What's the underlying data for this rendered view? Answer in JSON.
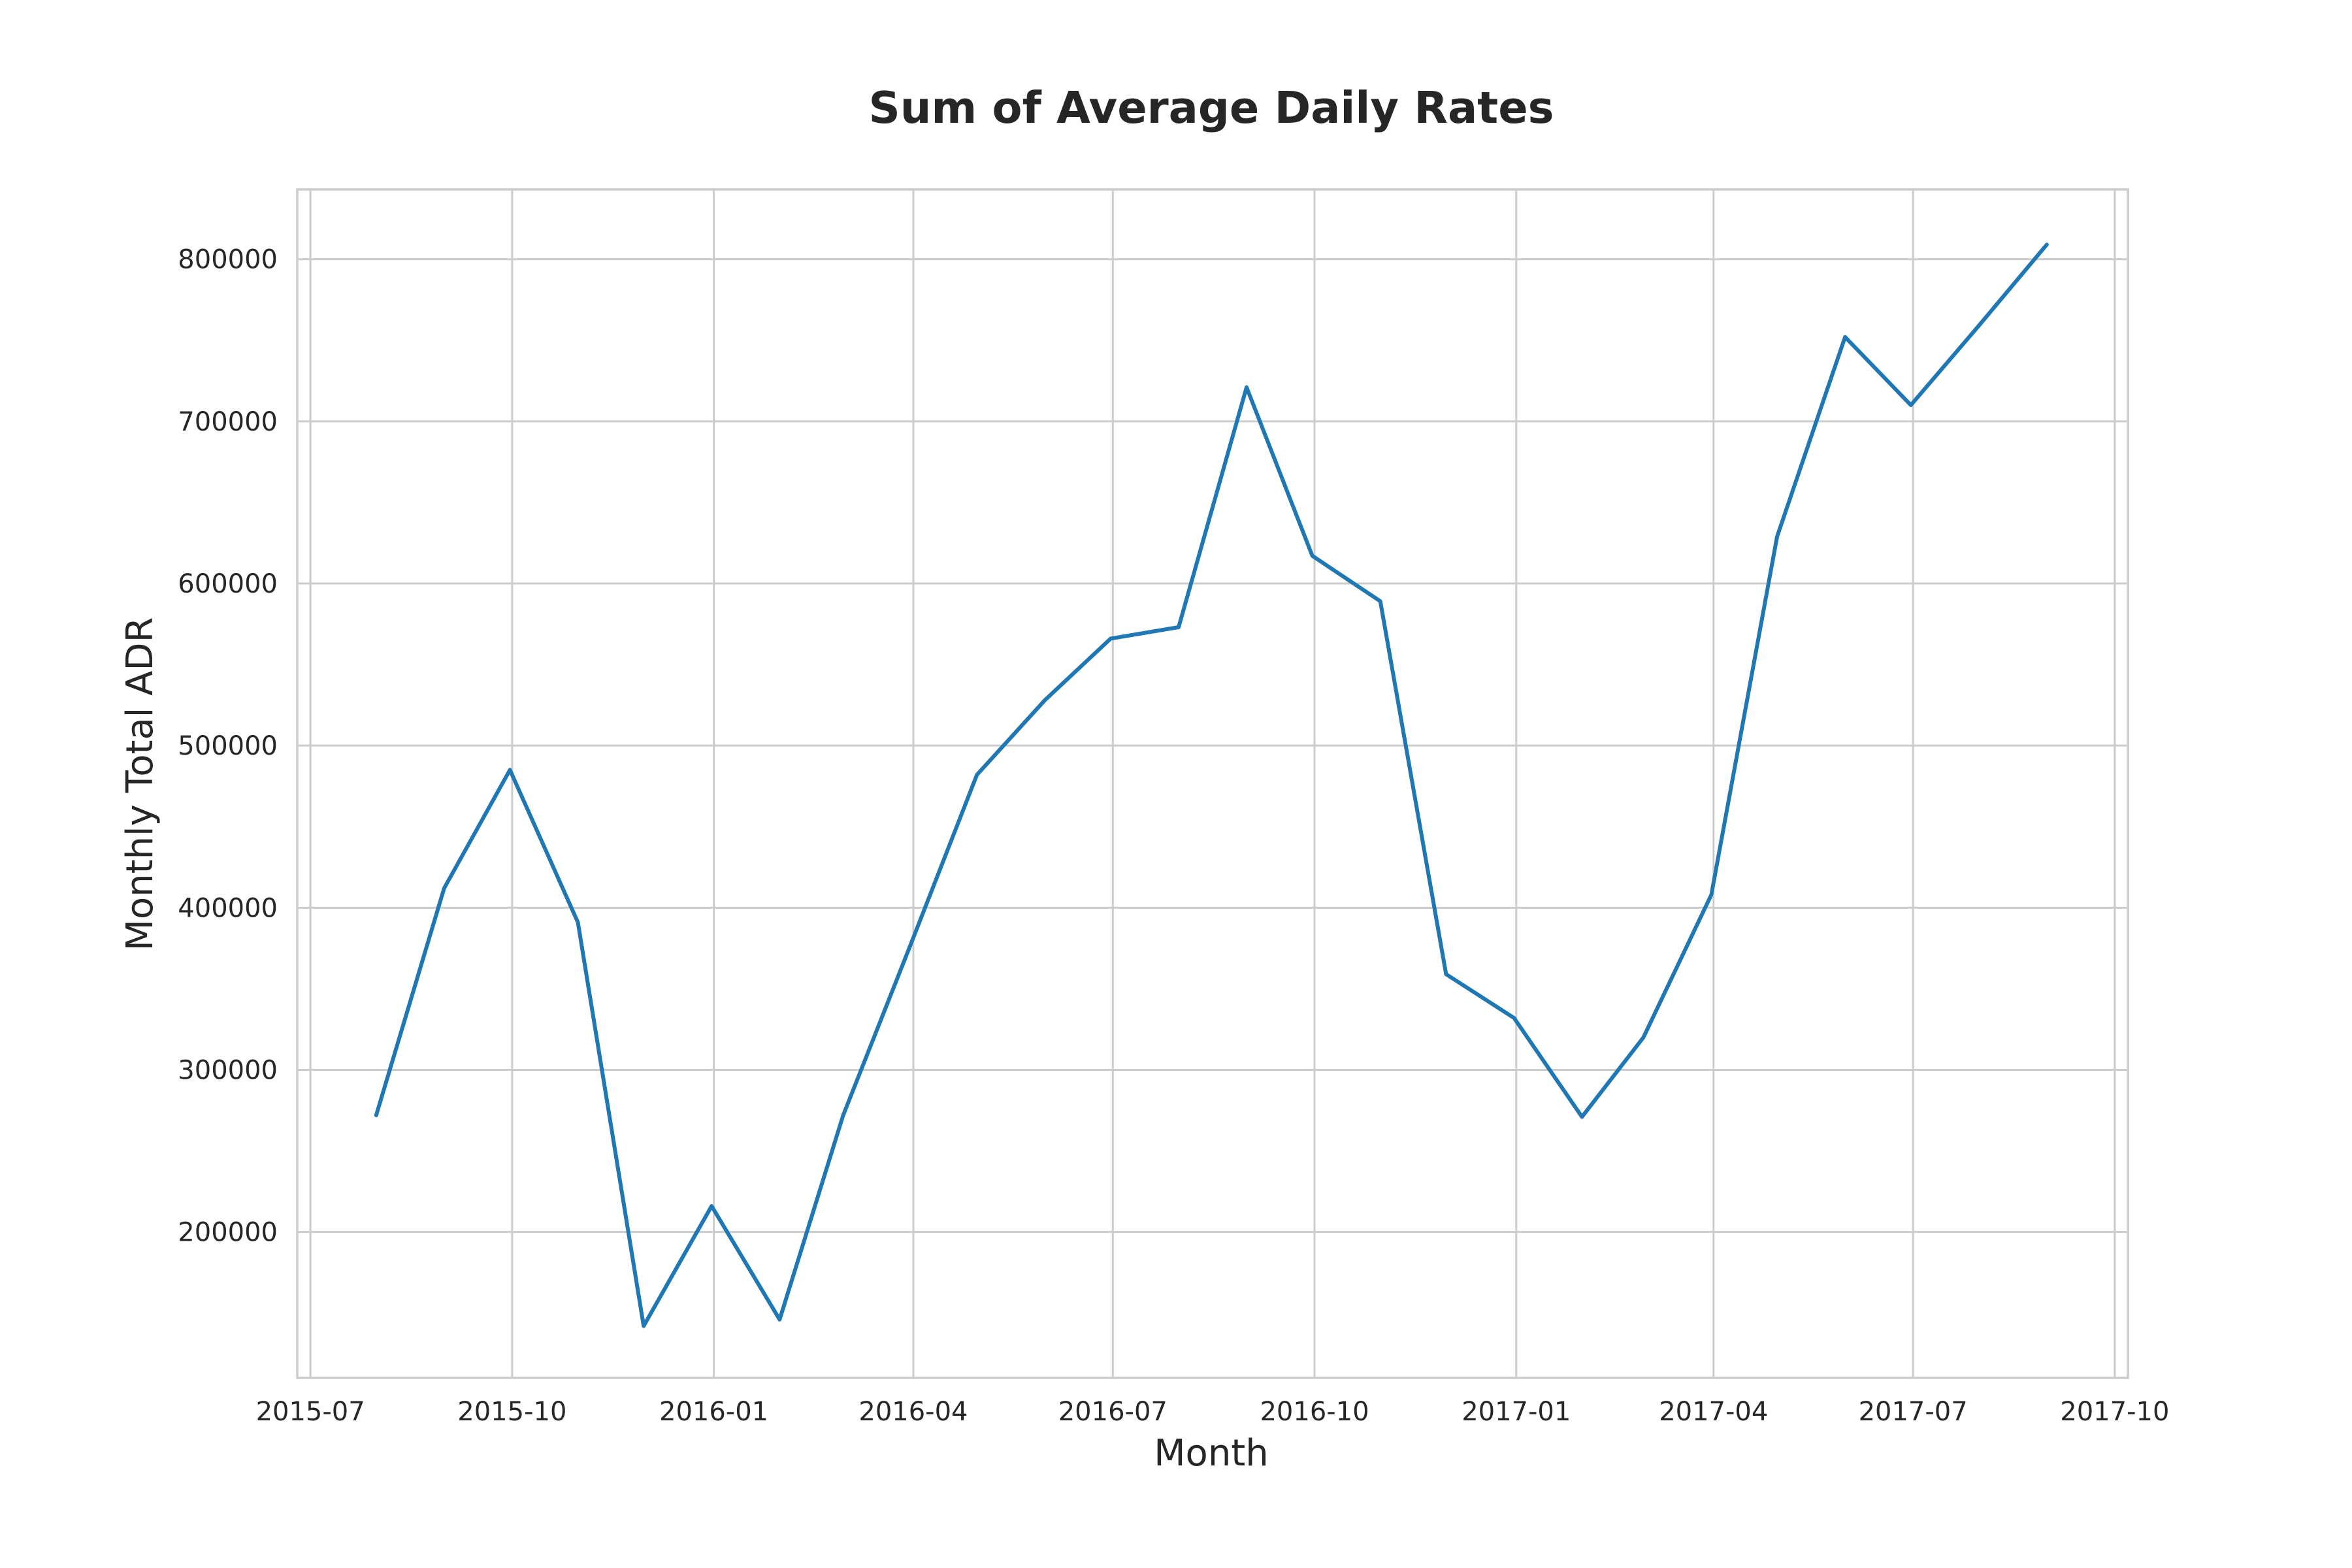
{
  "chart_data": {
    "type": "line",
    "title": "Sum of Average Daily Rates",
    "xlabel": "Month",
    "ylabel": "Monthly Total ADR",
    "x_ticks": [
      "2015-07",
      "2015-10",
      "2016-01",
      "2016-04",
      "2016-07",
      "2016-10",
      "2017-01",
      "2017-04",
      "2017-07",
      "2017-10"
    ],
    "y_ticks": [
      200000,
      300000,
      400000,
      500000,
      600000,
      700000,
      800000
    ],
    "xlim": [
      "2015-06-25",
      "2017-10-07"
    ],
    "ylim": [
      110000,
      843000
    ],
    "grid": true,
    "series": [
      {
        "color": "#1f77b4",
        "x": [
          "2015-07-31",
          "2015-08-31",
          "2015-09-30",
          "2015-10-31",
          "2015-11-30",
          "2015-12-31",
          "2016-01-31",
          "2016-02-29",
          "2016-03-31",
          "2016-04-30",
          "2016-05-31",
          "2016-06-30",
          "2016-07-31",
          "2016-08-31",
          "2016-09-30",
          "2016-10-31",
          "2016-11-30",
          "2016-12-31",
          "2017-01-31",
          "2017-02-28",
          "2017-03-31",
          "2017-04-30",
          "2017-05-31",
          "2017-06-30",
          "2017-07-31",
          "2017-08-31"
        ],
        "values": [
          272000,
          412000,
          485000,
          391000,
          142000,
          216000,
          146000,
          272000,
          378000,
          482000,
          528000,
          566000,
          573000,
          721000,
          617000,
          589000,
          359000,
          332000,
          271000,
          320000,
          408000,
          629000,
          752000,
          710000,
          759000,
          809000
        ]
      }
    ]
  }
}
